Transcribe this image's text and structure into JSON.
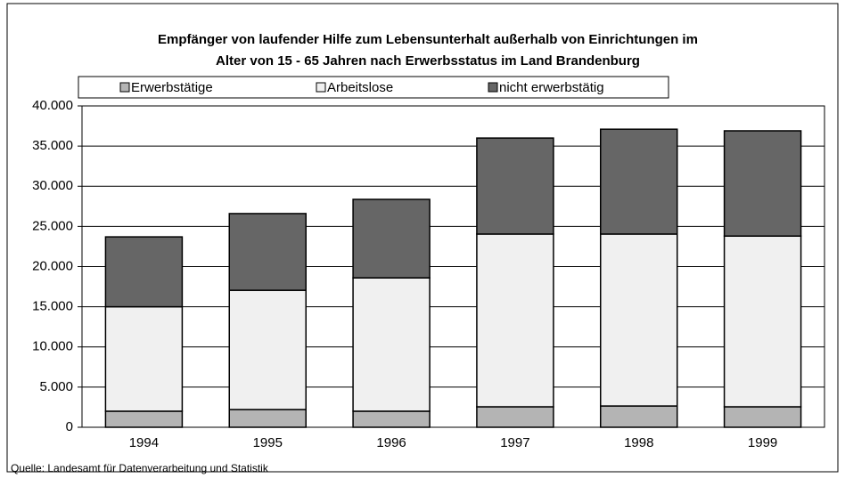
{
  "chart_data": {
    "type": "stacked_bar",
    "title": [
      "Empfänger von laufender Hilfe zum Lebensunterhalt außerhalb von Einrichtungen im",
      "Alter von 15 - 65 Jahren nach Erwerbsstatus im Land Brandenburg"
    ],
    "categories": [
      "1994",
      "1995",
      "1996",
      "1997",
      "1998",
      "1999"
    ],
    "series": [
      {
        "name": "Erwerbstätige",
        "color": "#b4b4b4",
        "values": [
          2000,
          2200,
          2000,
          2550,
          2650,
          2550
        ]
      },
      {
        "name": "Arbeitslose",
        "color": "#f0f0f0",
        "values": [
          13000,
          14850,
          16600,
          21500,
          21400,
          21250
        ]
      },
      {
        "name": "nicht erwerbstätig",
        "color": "#666666",
        "values": [
          8700,
          9550,
          9770,
          11950,
          13050,
          13100
        ]
      }
    ],
    "ylim": [
      0,
      40000
    ],
    "yticks": [
      0,
      {
        "value": 5000,
        "label": "5.000"
      },
      {
        "value": 10000,
        "label": "10.000"
      },
      {
        "value": 15000,
        "label": "15.000"
      },
      {
        "value": 20000,
        "label": "20.000"
      },
      {
        "value": 25000,
        "label": "25.000"
      },
      {
        "value": 30000,
        "label": "30.000"
      },
      {
        "value": 35000,
        "label": "35.000"
      },
      {
        "value": 40000,
        "label": "40.000"
      }
    ],
    "grid": true,
    "legend": "top",
    "source": "Quelle: Landesamt für Datenverarbeitung und Statistik"
  }
}
